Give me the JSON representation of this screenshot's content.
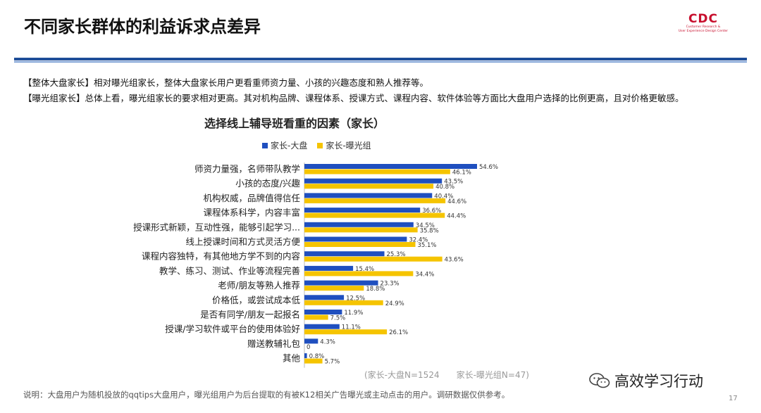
{
  "page": {
    "title": "不同家长群体的利益诉求点差异",
    "logo": {
      "main": "CDC",
      "sub1": "Customer Research &",
      "sub2": "User Experience Design Center"
    },
    "notes": [
      "【整体大盘家长】相对曝光组家长，整体大盘家长用户更看重师资力量、小孩的兴趣态度和熟人推荐等。",
      "【曝光组家长】总体上看，曝光组家长的要求相对更高。其对机构品牌、课程体系、授课方式、课程内容、软件体验等方面比大盘用户选择的比例更高，且对价格更敏感。"
    ],
    "sample_note": "(家长-大盘N=1524　　家长-曝光组N=47)",
    "footnote": "说明：大盘用户为随机投放的qqtips大盘用户，曝光组用户为后台提取的有被K12相关广告曝光或主动点击的用户。调研数据仅供参考。",
    "page_number": "17",
    "watermark": {
      "text": "高效学习行动",
      "icon": "wechat-icon"
    }
  },
  "chart_data": {
    "type": "bar",
    "orientation": "horizontal",
    "title": "选择线上辅导班看重的因素（家长）",
    "legend_position": "top",
    "categories": [
      "师资力量强，名师带队教学",
      "小孩的态度/兴趣",
      "机构权威，品牌值得信任",
      "课程体系科学，内容丰富",
      "授课形式新颖，互动性强，能够引起学习...",
      "线上授课时间和方式灵活方便",
      "课程内容独特，有其他地方学不到的内容",
      "教学、练习、测试、作业等流程完善",
      "老师/朋友等熟人推荐",
      "价格低，或尝试成本低",
      "是否有同学/朋友一起报名",
      "授课/学习软件或平台的使用体验好",
      "赠送教辅礼包",
      "其他"
    ],
    "series": [
      {
        "name": "家长-大盘",
        "color": "#1f4fbf",
        "values": [
          54.6,
          43.5,
          40.4,
          36.6,
          34.5,
          32.4,
          25.3,
          15.4,
          23.3,
          12.5,
          11.9,
          11.1,
          4.3,
          0.8
        ],
        "labels": [
          "54.6%",
          "43.5%",
          "40.4%",
          "36.6%",
          "34.5%",
          "32.4%",
          "25.3%",
          "15.4%",
          "23.3%",
          "12.5%",
          "11.9%",
          "11.1%",
          "4.3%",
          "0.8%"
        ]
      },
      {
        "name": "家长-曝光组",
        "color": "#f5c400",
        "values": [
          46.1,
          40.8,
          44.6,
          44.4,
          35.8,
          35.1,
          43.6,
          34.4,
          18.8,
          24.9,
          7.5,
          26.1,
          0,
          5.7
        ],
        "labels": [
          "46.1%",
          "40.8%",
          "44.6%",
          "44.4%",
          "35.8%",
          "35.1%",
          "43.6%",
          "34.4%",
          "18.8%",
          "24.9%",
          "7.5%",
          "26.1%",
          "0",
          "5.7%"
        ]
      }
    ],
    "xlim": [
      0,
      60
    ],
    "axis_ticks_shown": false,
    "grid": false
  }
}
